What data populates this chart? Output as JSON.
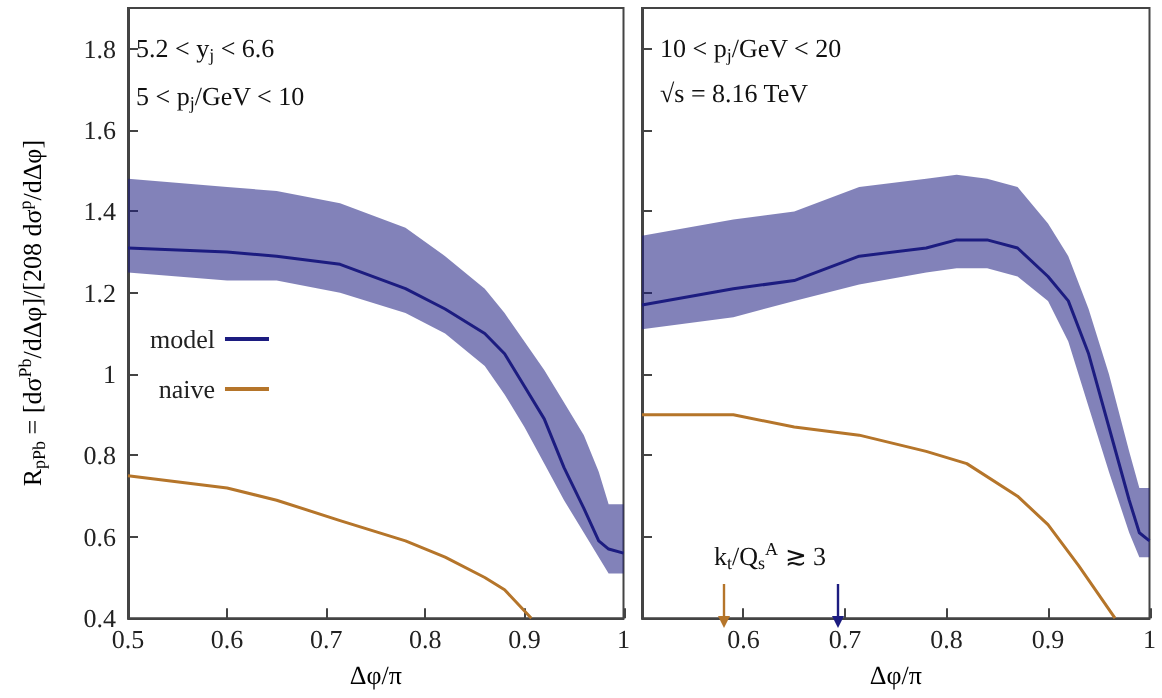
{
  "chart_data": [
    {
      "type": "line",
      "xlabel": "Δφ/π",
      "ylabel": "R$_{pPb}$ = [dσ$^{Pb}$/dΔφ]/[208 dσ$^{p}$/dΔφ]",
      "annotations": [
        "5.2 < y$_{j}$ < 6.6",
        "5 < p$_{j}$/GeV < 10"
      ],
      "xlim": [
        0.5,
        1
      ],
      "xticks": [
        0.5,
        0.6,
        0.7,
        0.8,
        0.9,
        1
      ],
      "ylim": [
        0.4,
        1.9
      ],
      "yticks": [
        0.4,
        0.6,
        0.8,
        1,
        1.2,
        1.4,
        1.6,
        1.8
      ],
      "grid": false,
      "legend": "center left",
      "marker": "none",
      "line_style": "solid",
      "series": [
        {
          "name": "model",
          "color": "#1c1c80",
          "x": [
            0.5,
            0.6,
            0.65,
            0.714,
            0.78,
            0.82,
            0.86,
            0.88,
            0.9,
            0.92,
            0.94,
            0.96,
            0.975,
            0.985,
            1
          ],
          "values": [
            1.31,
            1.3,
            1.29,
            1.27,
            1.21,
            1.16,
            1.1,
            1.05,
            0.97,
            0.89,
            0.77,
            0.67,
            0.59,
            0.57,
            0.56
          ],
          "upper": [
            1.48,
            1.46,
            1.45,
            1.42,
            1.36,
            1.29,
            1.21,
            1.15,
            1.08,
            1.01,
            0.93,
            0.85,
            0.76,
            0.68,
            0.68
          ],
          "lower": [
            1.25,
            1.23,
            1.23,
            1.2,
            1.15,
            1.1,
            1.02,
            0.95,
            0.87,
            0.78,
            0.69,
            0.61,
            0.55,
            0.51,
            0.51
          ]
        },
        {
          "name": "naive",
          "color": "#b5752a",
          "x": [
            0.5,
            0.6,
            0.65,
            0.714,
            0.78,
            0.82,
            0.86,
            0.88,
            0.907
          ],
          "values": [
            0.75,
            0.72,
            0.69,
            0.64,
            0.59,
            0.55,
            0.5,
            0.47,
            0.4
          ]
        }
      ]
    },
    {
      "type": "line",
      "xlabel": "Δφ/π",
      "annotations": [
        "10 < p$_{j}$/GeV < 20",
        "√s = 8.16 TeV",
        "k$_{t}$/Q$_{s}$$^{A}$ ≳ 3"
      ],
      "xlim": [
        0.5,
        1
      ],
      "xticks": [
        {
          "value": 0.5,
          "label": null
        },
        0.6,
        0.7,
        0.8,
        0.9,
        1
      ],
      "ylim": [
        0.4,
        1.9
      ],
      "yticks": [
        0.4,
        0.6,
        0.8,
        1,
        1.2,
        1.4,
        1.6,
        1.8
      ],
      "tick_labels": "x",
      "grid": false,
      "marker": "none",
      "line_style": "solid",
      "series": [
        {
          "color": "#1c1c80",
          "x": [
            0.5,
            0.59,
            0.65,
            0.714,
            0.78,
            0.81,
            0.84,
            0.87,
            0.9,
            0.92,
            0.94,
            0.96,
            0.98,
            0.99,
            1
          ],
          "values": [
            1.17,
            1.21,
            1.23,
            1.29,
            1.31,
            1.33,
            1.33,
            1.31,
            1.24,
            1.18,
            1.05,
            0.87,
            0.69,
            0.61,
            0.59
          ],
          "upper": [
            1.34,
            1.38,
            1.4,
            1.46,
            1.48,
            1.49,
            1.48,
            1.46,
            1.37,
            1.29,
            1.16,
            1,
            0.81,
            0.72,
            0.72
          ],
          "lower": [
            1.11,
            1.14,
            1.18,
            1.22,
            1.25,
            1.26,
            1.26,
            1.24,
            1.18,
            1.08,
            0.92,
            0.76,
            0.61,
            0.55,
            0.55
          ]
        },
        {
          "color": "#b5752a",
          "x": [
            0.5,
            0.59,
            0.65,
            0.714,
            0.78,
            0.82,
            0.87,
            0.9,
            0.93,
            0.966
          ],
          "values": [
            0.9,
            0.9,
            0.87,
            0.85,
            0.81,
            0.78,
            0.7,
            0.63,
            0.53,
            0.4
          ]
        }
      ]
    }
  ]
}
